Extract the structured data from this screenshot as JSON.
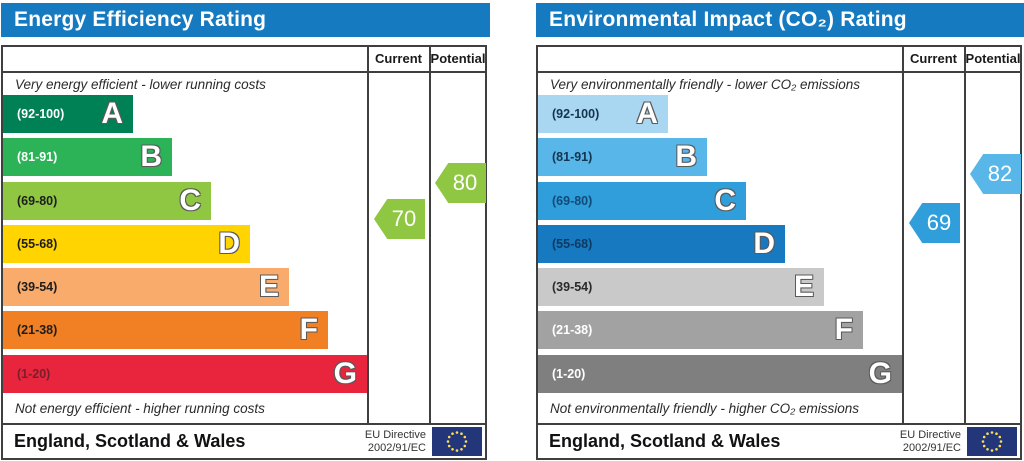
{
  "panels": [
    {
      "title": "Energy Efficiency Rating",
      "top_note": "Very energy efficient - lower running costs",
      "bottom_note": "Not energy efficient - higher running costs",
      "columns": {
        "current": "Current",
        "potential": "Potential"
      },
      "bands": [
        {
          "letter": "A",
          "range": "(92-100)",
          "min": 92,
          "max": 100,
          "color": "#008055",
          "range_color": "#ffffff"
        },
        {
          "letter": "B",
          "range": "(81-91)",
          "min": 81,
          "max": 91,
          "color": "#2cb358",
          "range_color": "#ffffff"
        },
        {
          "letter": "C",
          "range": "(69-80)",
          "min": 69,
          "max": 80,
          "color": "#8fc742",
          "range_color": "#1d1d1d"
        },
        {
          "letter": "D",
          "range": "(55-68)",
          "min": 55,
          "max": 68,
          "color": "#ffd401",
          "range_color": "#1d1d1d"
        },
        {
          "letter": "E",
          "range": "(39-54)",
          "min": 39,
          "max": 54,
          "color": "#f9ab6b",
          "range_color": "#1d1d1d"
        },
        {
          "letter": "F",
          "range": "(21-38)",
          "min": 21,
          "max": 38,
          "color": "#f08023",
          "range_color": "#1d1d1d"
        },
        {
          "letter": "G",
          "range": "(1-20)",
          "min": 1,
          "max": 20,
          "color": "#e8253c",
          "range_color": "#7a1e2a"
        }
      ],
      "current": {
        "value": 70,
        "color": "#8fc742"
      },
      "potential": {
        "value": 80,
        "color": "#8fc742"
      },
      "footer": {
        "region": "England, Scotland & Wales",
        "directive_line1": "EU Directive",
        "directive_line2": "2002/91/EC"
      }
    },
    {
      "title": "Environmental Impact (CO₂) Rating",
      "top_note": "Very environmentally friendly - lower CO₂ emissions",
      "bottom_note": "Not environmentally friendly - higher CO₂ emissions",
      "columns": {
        "current": "Current",
        "potential": "Potential"
      },
      "bands": [
        {
          "letter": "A",
          "range": "(92-100)",
          "min": 92,
          "max": 100,
          "color": "#a9d6f1",
          "range_color": "#14354f"
        },
        {
          "letter": "B",
          "range": "(81-91)",
          "min": 81,
          "max": 91,
          "color": "#58b6e8",
          "range_color": "#14354f"
        },
        {
          "letter": "C",
          "range": "(69-80)",
          "min": 69,
          "max": 80,
          "color": "#2f9eda",
          "range_color": "#124a77"
        },
        {
          "letter": "D",
          "range": "(55-68)",
          "min": 55,
          "max": 68,
          "color": "#1779bf",
          "range_color": "#0d3a63"
        },
        {
          "letter": "E",
          "range": "(39-54)",
          "min": 39,
          "max": 54,
          "color": "#c9c9c9",
          "range_color": "#2a2a2a"
        },
        {
          "letter": "F",
          "range": "(21-38)",
          "min": 21,
          "max": 38,
          "color": "#a2a2a2",
          "range_color": "#ffffff"
        },
        {
          "letter": "G",
          "range": "(1-20)",
          "min": 1,
          "max": 20,
          "color": "#7f7f7f",
          "range_color": "#ffffff"
        }
      ],
      "current": {
        "value": 69,
        "color": "#2f9eda"
      },
      "potential": {
        "value": 82,
        "color": "#58b6e8"
      },
      "footer": {
        "region": "England, Scotland & Wales",
        "directive_line1": "EU Directive",
        "directive_line2": "2002/91/EC"
      }
    }
  ],
  "chart_data": [
    {
      "type": "bar",
      "title": "Energy Efficiency Rating",
      "categories": [
        "A",
        "B",
        "C",
        "D",
        "E",
        "F",
        "G"
      ],
      "band_ranges": [
        [
          92,
          100
        ],
        [
          81,
          91
        ],
        [
          69,
          80
        ],
        [
          55,
          68
        ],
        [
          39,
          54
        ],
        [
          21,
          38
        ],
        [
          1,
          20
        ]
      ],
      "series": [
        {
          "name": "Current",
          "values": [
            70
          ]
        },
        {
          "name": "Potential",
          "values": [
            80
          ]
        }
      ],
      "xlabel": "",
      "ylabel": "",
      "xlim": [
        1,
        100
      ],
      "legend_position": "top-right-columns",
      "grid": false
    },
    {
      "type": "bar",
      "title": "Environmental Impact (CO₂) Rating",
      "categories": [
        "A",
        "B",
        "C",
        "D",
        "E",
        "F",
        "G"
      ],
      "band_ranges": [
        [
          92,
          100
        ],
        [
          81,
          91
        ],
        [
          69,
          80
        ],
        [
          55,
          68
        ],
        [
          39,
          54
        ],
        [
          21,
          38
        ],
        [
          1,
          20
        ]
      ],
      "series": [
        {
          "name": "Current",
          "values": [
            69
          ]
        },
        {
          "name": "Potential",
          "values": [
            82
          ]
        }
      ],
      "xlabel": "",
      "ylabel": "",
      "xlim": [
        1,
        100
      ],
      "legend_position": "top-right-columns",
      "grid": false
    }
  ]
}
